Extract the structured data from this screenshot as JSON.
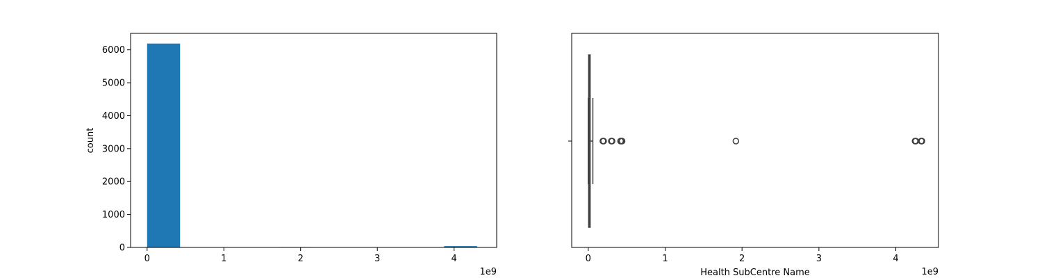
{
  "chart_data": [
    {
      "type": "bar",
      "title": "",
      "xlabel": "",
      "ylabel": "count",
      "x_offset_label": "1e9",
      "xlim": [
        -0.215,
        4.555
      ],
      "ylim": [
        0,
        6500
      ],
      "x_ticks": [
        0,
        1,
        2,
        3,
        4
      ],
      "y_ticks": [
        0,
        1000,
        2000,
        3000,
        4000,
        5000,
        6000
      ],
      "bins": [
        {
          "start": 0.0,
          "end": 0.43,
          "count": 6190
        },
        {
          "start": 0.43,
          "end": 0.86,
          "count": 0
        },
        {
          "start": 0.86,
          "end": 1.29,
          "count": 0
        },
        {
          "start": 1.29,
          "end": 1.72,
          "count": 0
        },
        {
          "start": 1.72,
          "end": 2.15,
          "count": 12
        },
        {
          "start": 2.15,
          "end": 2.58,
          "count": 0
        },
        {
          "start": 2.58,
          "end": 3.01,
          "count": 0
        },
        {
          "start": 3.01,
          "end": 3.44,
          "count": 0
        },
        {
          "start": 3.44,
          "end": 3.87,
          "count": 0
        },
        {
          "start": 3.87,
          "end": 4.3,
          "count": 40
        }
      ],
      "bar_color": "#1f77b4",
      "grid": false
    },
    {
      "type": "box",
      "title": "",
      "xlabel": "Health SubCentre Name",
      "ylabel": "",
      "x_offset_label": "1e9",
      "xlim": [
        -0.215,
        4.555
      ],
      "x_ticks": [
        0,
        1,
        2,
        3,
        4
      ],
      "box": {
        "whisker_low": 0.0,
        "q1": 0.005,
        "median": 0.012,
        "q3": 0.025,
        "whisker_high": 0.06
      },
      "outliers": [
        0.19,
        0.2,
        0.3,
        0.31,
        0.42,
        0.43,
        0.44,
        1.92,
        4.25,
        4.26,
        4.33,
        4.34
      ],
      "box_color": "#3f3f3f",
      "grid": false
    }
  ]
}
